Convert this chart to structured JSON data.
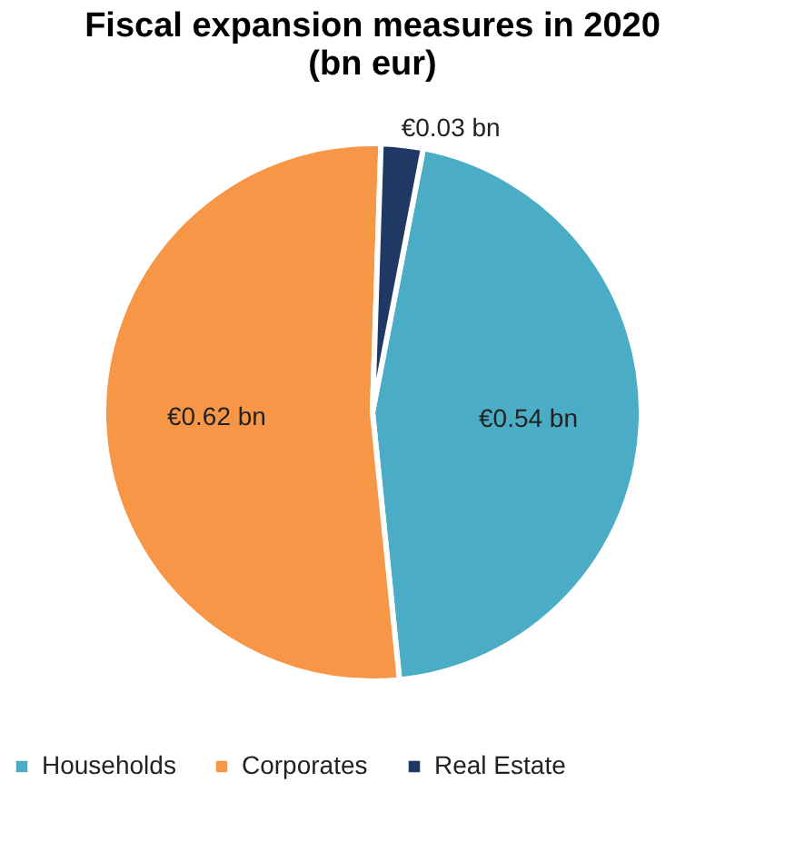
{
  "chart_data": {
    "type": "pie",
    "title": [
      "Fiscal expansion measures in 2020",
      "(bn eur)"
    ],
    "categories": [
      "Households",
      "Corporates",
      "Real Estate"
    ],
    "values": [
      0.54,
      0.62,
      0.03
    ],
    "colors": [
      "#4bacc6",
      "#f79646",
      "#1f3864"
    ],
    "value_labels": [
      "€0.54 bn",
      "€0.62 bn",
      "€0.03 bn"
    ],
    "legend": "bottom"
  }
}
